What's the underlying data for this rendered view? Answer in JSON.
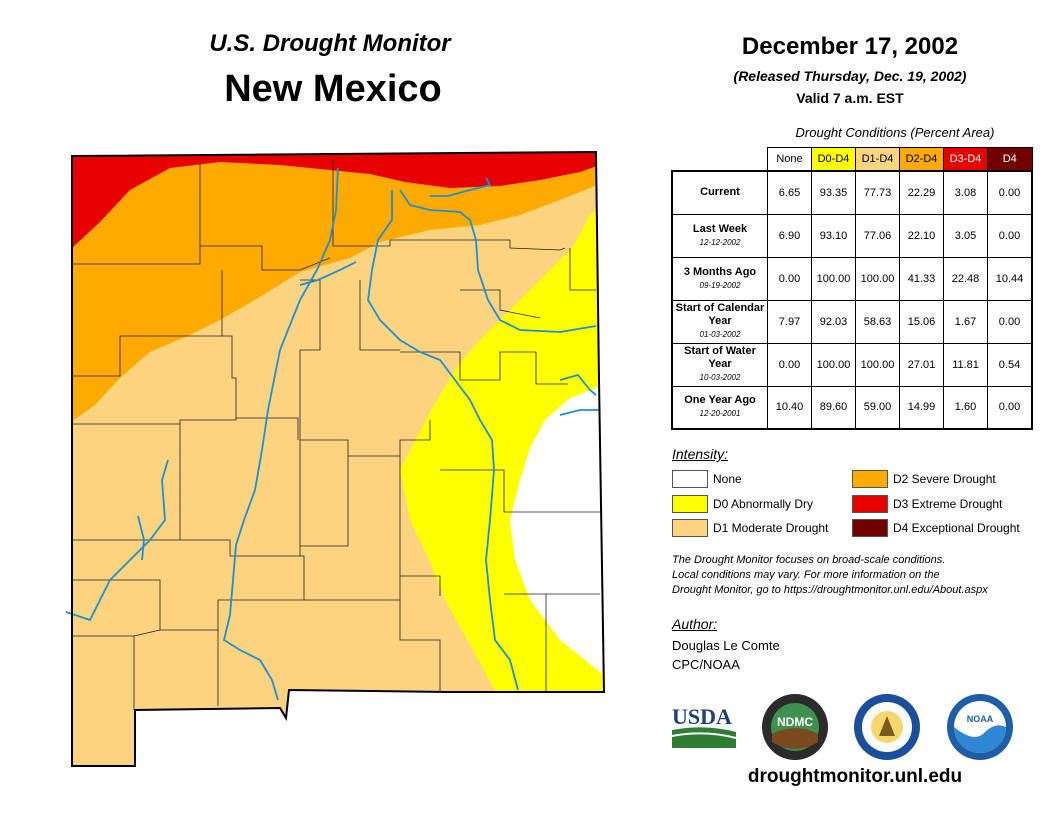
{
  "header": {
    "subtitle": "U.S. Drought Monitor",
    "state": "New Mexico",
    "date": "December 17, 2002",
    "released": "(Released Thursday, Dec. 19, 2002)",
    "valid": "Valid 7 a.m. EST"
  },
  "table": {
    "caption": "Drought Conditions (Percent Area)",
    "columns": [
      "None",
      "D0-D4",
      "D1-D4",
      "D2-D4",
      "D3-D4",
      "D4"
    ],
    "rows": [
      {
        "label": "Current",
        "date": "",
        "values": [
          "6.65",
          "93.35",
          "77.73",
          "22.29",
          "3.08",
          "0.00"
        ]
      },
      {
        "label": "Last Week",
        "date": "12-12-2002",
        "values": [
          "6.90",
          "93.10",
          "77.06",
          "22.10",
          "3.05",
          "0.00"
        ]
      },
      {
        "label": "3 Months Ago",
        "date": "09-19-2002",
        "values": [
          "0.00",
          "100.00",
          "100.00",
          "41.33",
          "22.48",
          "10.44"
        ]
      },
      {
        "label": "Start of Calendar Year",
        "date": "01-03-2002",
        "values": [
          "7.97",
          "92.03",
          "58.63",
          "15.06",
          "1.67",
          "0.00"
        ]
      },
      {
        "label": "Start of Water Year",
        "date": "10-03-2002",
        "values": [
          "0.00",
          "100.00",
          "100.00",
          "27.01",
          "11.81",
          "0.54"
        ]
      },
      {
        "label": "One Year Ago",
        "date": "12-20-2001",
        "values": [
          "10.40",
          "89.60",
          "59.00",
          "14.99",
          "1.60",
          "0.00"
        ]
      }
    ]
  },
  "legend": {
    "title": "Intensity:",
    "items": [
      {
        "label": "None",
        "color": "#ffffff"
      },
      {
        "label": "D0 Abnormally Dry",
        "color": "#ffff00"
      },
      {
        "label": "D1 Moderate Drought",
        "color": "#fcd37f"
      },
      {
        "label": "D2 Severe Drought",
        "color": "#ffaa00"
      },
      {
        "label": "D3 Extreme Drought",
        "color": "#e60000"
      },
      {
        "label": "D4 Exceptional Drought",
        "color": "#730000"
      }
    ]
  },
  "note": {
    "line1": "The Drought Monitor focuses on broad-scale conditions.",
    "line2": "Local conditions may vary. For more information on the",
    "line3": "Drought Monitor, go to https://droughtmonitor.unl.edu/About.aspx"
  },
  "author": {
    "title": "Author:",
    "name": "Douglas Le Comte",
    "org": "CPC/NOAA"
  },
  "logos": {
    "usda": "USDA",
    "ndmc": "NDMC",
    "noaa": "NOAA"
  },
  "website": "droughtmonitor.unl.edu",
  "colors": {
    "none": "#ffffff",
    "d0": "#ffff00",
    "d1": "#fcd37f",
    "d2": "#ffaa00",
    "d3": "#e60000",
    "d4": "#730000",
    "river": "#1e8fd5"
  }
}
